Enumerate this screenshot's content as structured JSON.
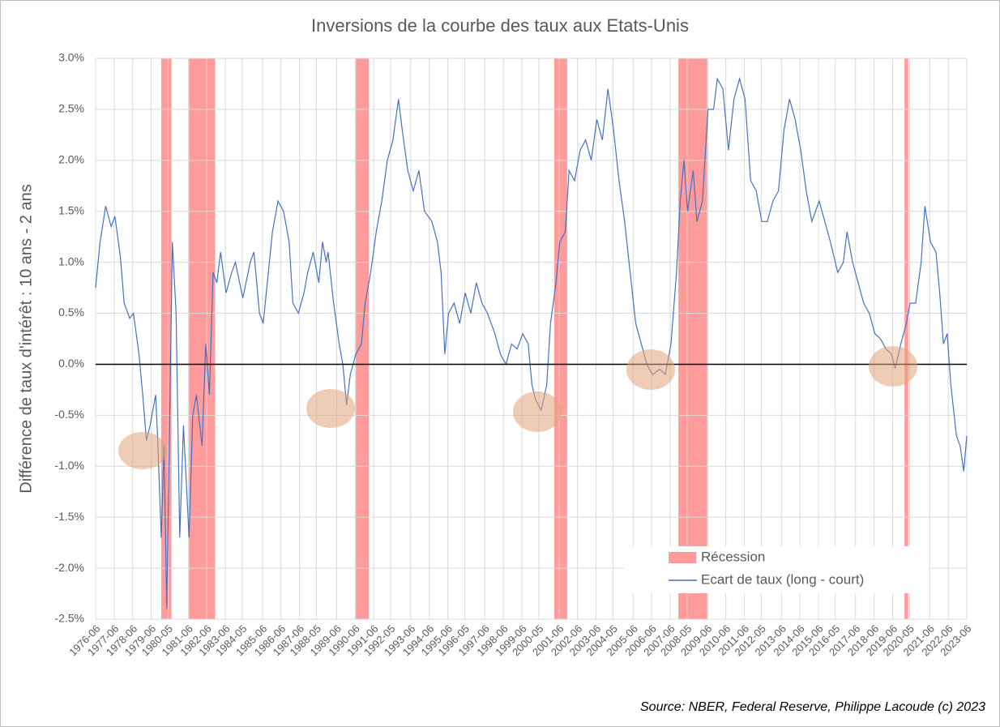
{
  "chart_data": {
    "type": "line",
    "title": "Inversions de la courbe des taux aux Etats-Unis",
    "ylabel": "Différence de taux d'intérêt : 10 ans - 2 ans",
    "source": "Source: NBER, Federal Reserve, Philippe Lacoude (c) 2023",
    "xlim": [
      1976.46,
      2023.46
    ],
    "ylim": [
      -2.5,
      3
    ],
    "grid": true,
    "yticks": [
      {
        "value": 3,
        "label": "3.0%"
      },
      {
        "value": 2.5,
        "label": "2.5%"
      },
      {
        "value": 2,
        "label": "2.0%"
      },
      {
        "value": 1.5,
        "label": "1.5%"
      },
      {
        "value": 1,
        "label": "1.0%"
      },
      {
        "value": 0.5,
        "label": "0.5%"
      },
      {
        "value": 0,
        "label": "0.0%"
      },
      {
        "value": -0.5,
        "label": "-0.5%"
      },
      {
        "value": -1,
        "label": "-1.0%"
      },
      {
        "value": -1.5,
        "label": "-1.5%"
      },
      {
        "value": -2,
        "label": "-2.0%"
      },
      {
        "value": -2.5,
        "label": "-2.5%"
      }
    ],
    "xticks": [
      {
        "value": 1976.46,
        "label": "1976-06"
      },
      {
        "value": 1977.46,
        "label": "1977-06"
      },
      {
        "value": 1978.46,
        "label": "1978-06"
      },
      {
        "value": 1979.46,
        "label": "1979-06"
      },
      {
        "value": 1980.37,
        "label": "1980-05"
      },
      {
        "value": 1981.46,
        "label": "1981-06"
      },
      {
        "value": 1982.46,
        "label": "1982-06"
      },
      {
        "value": 1983.46,
        "label": "1983-06"
      },
      {
        "value": 1984.37,
        "label": "1984-05"
      },
      {
        "value": 1985.46,
        "label": "1985-06"
      },
      {
        "value": 1986.46,
        "label": "1986-06"
      },
      {
        "value": 1987.46,
        "label": "1987-06"
      },
      {
        "value": 1988.37,
        "label": "1988-05"
      },
      {
        "value": 1989.46,
        "label": "1989-06"
      },
      {
        "value": 1990.46,
        "label": "1990-06"
      },
      {
        "value": 1991.46,
        "label": "1991-06"
      },
      {
        "value": 1992.37,
        "label": "1992-05"
      },
      {
        "value": 1993.46,
        "label": "1993-06"
      },
      {
        "value": 1994.46,
        "label": "1994-06"
      },
      {
        "value": 1995.46,
        "label": "1995-06"
      },
      {
        "value": 1996.37,
        "label": "1996-05"
      },
      {
        "value": 1997.46,
        "label": "1997-06"
      },
      {
        "value": 1998.46,
        "label": "1998-06"
      },
      {
        "value": 1999.46,
        "label": "1999-06"
      },
      {
        "value": 2000.37,
        "label": "2000-05"
      },
      {
        "value": 2001.46,
        "label": "2001-06"
      },
      {
        "value": 2002.46,
        "label": "2002-06"
      },
      {
        "value": 2003.46,
        "label": "2003-06"
      },
      {
        "value": 2004.37,
        "label": "2004-05"
      },
      {
        "value": 2005.46,
        "label": "2005-06"
      },
      {
        "value": 2006.46,
        "label": "2006-06"
      },
      {
        "value": 2007.46,
        "label": "2007-06"
      },
      {
        "value": 2008.37,
        "label": "2008-05"
      },
      {
        "value": 2009.46,
        "label": "2009-06"
      },
      {
        "value": 2010.46,
        "label": "2010-06"
      },
      {
        "value": 2011.46,
        "label": "2011-06"
      },
      {
        "value": 2012.37,
        "label": "2012-05"
      },
      {
        "value": 2013.46,
        "label": "2013-06"
      },
      {
        "value": 2014.46,
        "label": "2014-06"
      },
      {
        "value": 2015.46,
        "label": "2015-06"
      },
      {
        "value": 2016.37,
        "label": "2016-05"
      },
      {
        "value": 2017.46,
        "label": "2017-06"
      },
      {
        "value": 2018.46,
        "label": "2018-06"
      },
      {
        "value": 2019.46,
        "label": "2019-06"
      },
      {
        "value": 2020.37,
        "label": "2020-05"
      },
      {
        "value": 2021.46,
        "label": "2021-06"
      },
      {
        "value": 2022.46,
        "label": "2022-06"
      },
      {
        "value": 2023.46,
        "label": "2023-06"
      }
    ],
    "recessions": {
      "name": "Récession",
      "color": "#ff9b9b",
      "ranges": [
        [
          1980.0,
          1980.55
        ],
        [
          1981.5,
          1982.9
        ],
        [
          1990.5,
          1991.2
        ],
        [
          2001.2,
          2001.9
        ],
        [
          2007.9,
          2009.5
        ],
        [
          2020.1,
          2020.3
        ]
      ]
    },
    "x": [
      1976.46,
      1976.7,
      1977.0,
      1977.3,
      1977.5,
      1977.8,
      1978.0,
      1978.3,
      1978.5,
      1978.8,
      1979.0,
      1979.2,
      1979.4,
      1979.7,
      1979.8,
      1980.0,
      1980.15,
      1980.3,
      1980.4,
      1980.6,
      1980.8,
      1981.0,
      1981.2,
      1981.5,
      1981.7,
      1981.9,
      1982.2,
      1982.4,
      1982.6,
      1982.8,
      1983.0,
      1983.2,
      1983.5,
      1983.8,
      1984.0,
      1984.4,
      1984.8,
      1985.0,
      1985.3,
      1985.5,
      1986.0,
      1986.3,
      1986.6,
      1986.9,
      1987.1,
      1987.4,
      1987.7,
      1987.9,
      1988.2,
      1988.5,
      1988.7,
      1988.9,
      1989.0,
      1989.3,
      1989.6,
      1989.8,
      1990.0,
      1990.2,
      1990.5,
      1990.8,
      1991.0,
      1991.3,
      1991.6,
      1991.9,
      1992.2,
      1992.5,
      1992.8,
      1993.0,
      1993.3,
      1993.6,
      1993.9,
      1994.2,
      1994.6,
      1994.9,
      1995.1,
      1995.3,
      1995.5,
      1995.8,
      1996.1,
      1996.4,
      1996.7,
      1997.0,
      1997.3,
      1997.6,
      1998.0,
      1998.3,
      1998.6,
      1998.9,
      1999.2,
      1999.5,
      1999.8,
      2000.0,
      2000.2,
      2000.5,
      2000.8,
      2001.0,
      2001.3,
      2001.5,
      2001.8,
      2002.0,
      2002.3,
      2002.6,
      2002.9,
      2003.2,
      2003.5,
      2003.8,
      2004.1,
      2004.4,
      2004.7,
      2005.0,
      2005.3,
      2005.6,
      2005.9,
      2006.2,
      2006.5,
      2006.9,
      2007.2,
      2007.5,
      2007.8,
      2008.0,
      2008.2,
      2008.4,
      2008.7,
      2008.9,
      2009.2,
      2009.5,
      2009.8,
      2010.0,
      2010.3,
      2010.6,
      2010.9,
      2011.2,
      2011.5,
      2011.8,
      2012.1,
      2012.4,
      2012.7,
      2013.0,
      2013.3,
      2013.6,
      2013.9,
      2014.2,
      2014.5,
      2014.8,
      2015.1,
      2015.5,
      2015.8,
      2016.1,
      2016.5,
      2016.8,
      2017.0,
      2017.3,
      2017.6,
      2017.9,
      2018.2,
      2018.5,
      2018.8,
      2019.1,
      2019.4,
      2019.6,
      2019.9,
      2020.2,
      2020.4,
      2020.7,
      2021.0,
      2021.2,
      2021.5,
      2021.8,
      2022.0,
      2022.2,
      2022.4,
      2022.6,
      2022.9,
      2023.1,
      2023.3,
      2023.46
    ],
    "series": [
      {
        "name": "Ecart de taux (long - court)",
        "color": "#4472c4",
        "values": [
          0.75,
          1.2,
          1.55,
          1.35,
          1.45,
          1.05,
          0.6,
          0.45,
          0.5,
          0.1,
          -0.3,
          -0.75,
          -0.6,
          -0.3,
          -0.7,
          -1.7,
          -0.8,
          -2.4,
          -1.2,
          1.2,
          0.5,
          -1.7,
          -0.6,
          -1.7,
          -0.5,
          -0.3,
          -0.8,
          0.2,
          -0.3,
          0.9,
          0.8,
          1.1,
          0.7,
          0.9,
          1.0,
          0.65,
          1.0,
          1.1,
          0.5,
          0.4,
          1.3,
          1.6,
          1.5,
          1.2,
          0.6,
          0.5,
          0.7,
          0.9,
          1.1,
          0.8,
          1.2,
          1.0,
          1.1,
          0.6,
          0.2,
          0.0,
          -0.4,
          -0.1,
          0.1,
          0.2,
          0.6,
          0.9,
          1.3,
          1.6,
          2.0,
          2.2,
          2.6,
          2.3,
          1.9,
          1.7,
          1.9,
          1.5,
          1.4,
          1.2,
          0.9,
          0.1,
          0.5,
          0.6,
          0.4,
          0.7,
          0.5,
          0.8,
          0.6,
          0.5,
          0.3,
          0.1,
          0.0,
          0.2,
          0.15,
          0.3,
          0.2,
          -0.2,
          -0.35,
          -0.45,
          -0.2,
          0.4,
          0.8,
          1.2,
          1.3,
          1.9,
          1.8,
          2.1,
          2.2,
          2.0,
          2.4,
          2.2,
          2.7,
          2.3,
          1.8,
          1.4,
          0.9,
          0.4,
          0.2,
          0.0,
          -0.1,
          -0.05,
          -0.1,
          0.2,
          0.9,
          1.6,
          2.0,
          1.5,
          1.9,
          1.4,
          1.6,
          2.5,
          2.5,
          2.8,
          2.7,
          2.1,
          2.6,
          2.8,
          2.6,
          1.8,
          1.7,
          1.4,
          1.4,
          1.6,
          1.7,
          2.3,
          2.6,
          2.4,
          2.1,
          1.7,
          1.4,
          1.6,
          1.4,
          1.2,
          0.9,
          1.0,
          1.3,
          1.0,
          0.8,
          0.6,
          0.5,
          0.3,
          0.25,
          0.15,
          0.1,
          -0.04,
          0.2,
          0.4,
          0.6,
          0.6,
          1.0,
          1.55,
          1.2,
          1.1,
          0.7,
          0.2,
          0.3,
          -0.2,
          -0.7,
          -0.8,
          -1.05,
          -0.7
        ]
      }
    ]
  }
}
